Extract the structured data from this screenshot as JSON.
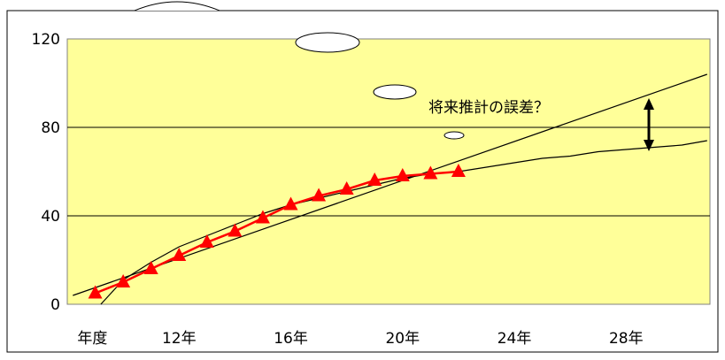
{
  "chart_data": {
    "type": "line",
    "x_tick_labels": [
      "年度",
      "12年",
      "16年",
      "20年",
      "24年",
      "28年"
    ],
    "y_ticks": [
      0,
      40,
      80,
      120
    ],
    "ylim": [
      0,
      120
    ],
    "xlim": [
      8,
      31
    ],
    "grid": true,
    "annotation": "将来推計の誤差？",
    "colors": {
      "plot_bg": "#FFFF99",
      "actual": "#FF0000",
      "marker": "#FF0000",
      "linear_trend": "#000000",
      "curve_projection": "#000000",
      "gridline": "#000000"
    },
    "series": [
      {
        "style": "red-line-triangle-markers",
        "x": [
          9,
          10,
          11,
          12,
          13,
          14,
          15,
          16,
          17,
          18,
          19,
          20,
          21,
          22
        ],
        "y": [
          5,
          10,
          16,
          22,
          28,
          33,
          39,
          45,
          49,
          52,
          56,
          58,
          59,
          60
        ]
      },
      {
        "style": "thin-straight-line",
        "x": [
          8.2,
          30.9
        ],
        "y": [
          4,
          104
        ]
      },
      {
        "style": "thin-curve",
        "x": [
          9.2,
          10,
          11,
          12,
          13,
          14,
          15,
          16,
          17,
          18,
          19,
          20,
          21,
          22,
          23,
          24,
          25,
          26,
          27,
          28,
          29,
          30,
          30.9
        ],
        "y": [
          0,
          11,
          19,
          26,
          31,
          36,
          41,
          45,
          48,
          51,
          54,
          57,
          59,
          60,
          62,
          64,
          66,
          67,
          69,
          70,
          71,
          72,
          74
        ]
      }
    ]
  }
}
